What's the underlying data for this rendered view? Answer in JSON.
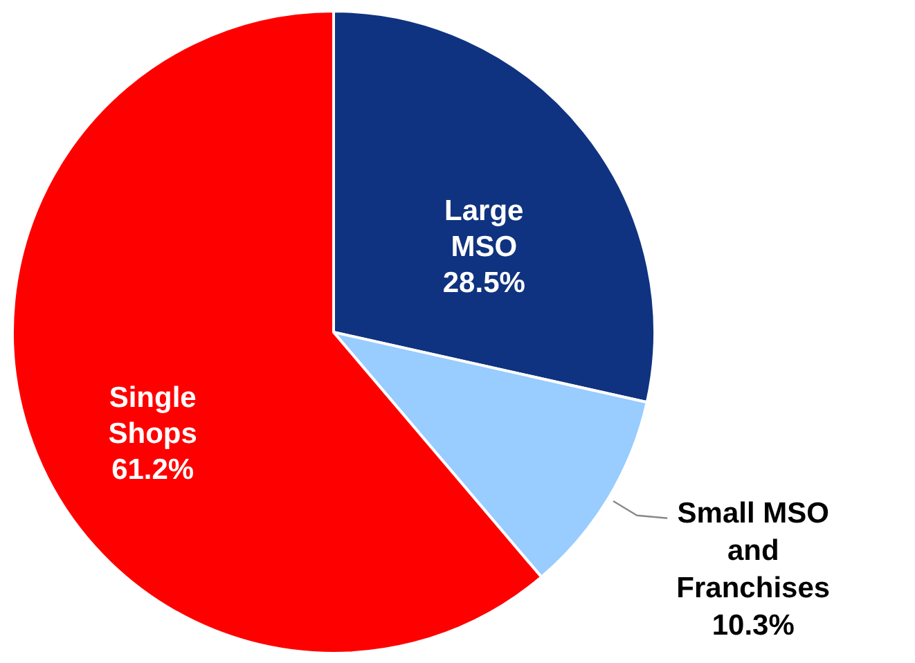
{
  "chart_data": {
    "type": "pie",
    "categories": [
      "Large MSO",
      "Small MSO and Franchises",
      "Single Shops"
    ],
    "values": [
      28.5,
      10.3,
      61.2
    ],
    "colors": [
      "#0f3380",
      "#99ccff",
      "#ff0000"
    ],
    "value_labels": [
      "28.5%",
      "10.3%",
      "61.2%"
    ]
  }
}
